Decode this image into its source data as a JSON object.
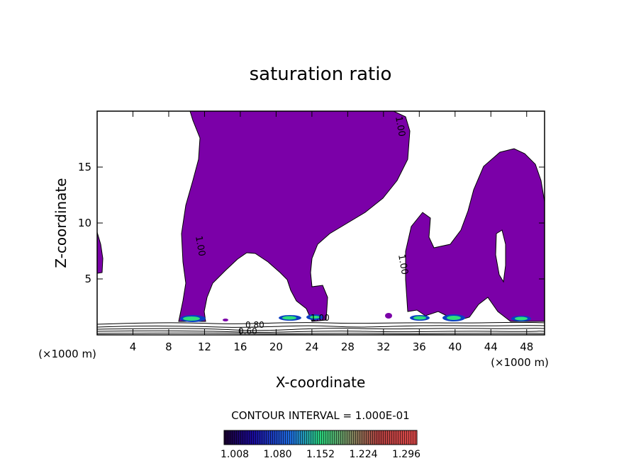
{
  "chart_data": {
    "type": "contour",
    "title": "saturation ratio",
    "xlabel": "X-coordinate",
    "ylabel": "Z-coordinate",
    "x_unit_left": "(×1000 m)",
    "x_unit_right": "(×1000 m)",
    "xlim": [
      0,
      50
    ],
    "ylim": [
      0,
      20
    ],
    "x_ticks": [
      4,
      8,
      12,
      16,
      20,
      24,
      28,
      32,
      36,
      40,
      44,
      48
    ],
    "x_tick_labels": [
      "4",
      "8",
      "12",
      "16",
      "20",
      "24",
      "28",
      "32",
      "36",
      "40",
      "44",
      "48"
    ],
    "y_ticks": [
      5,
      10,
      15
    ],
    "y_tick_labels": [
      "5",
      "10",
      "15"
    ],
    "contour_interval_text": "CONTOUR INTERVAL = 1.000E-01",
    "contour_labels": [
      "1.00",
      "1.00",
      "1.00",
      "1.00",
      "0.80",
      "0.60"
    ],
    "colorbar": {
      "ticks": [
        "1.008",
        "1.080",
        "1.152",
        "1.224",
        "1.296"
      ]
    },
    "colors": {
      "fill": "#7b00a8",
      "axis": "#000000"
    }
  }
}
